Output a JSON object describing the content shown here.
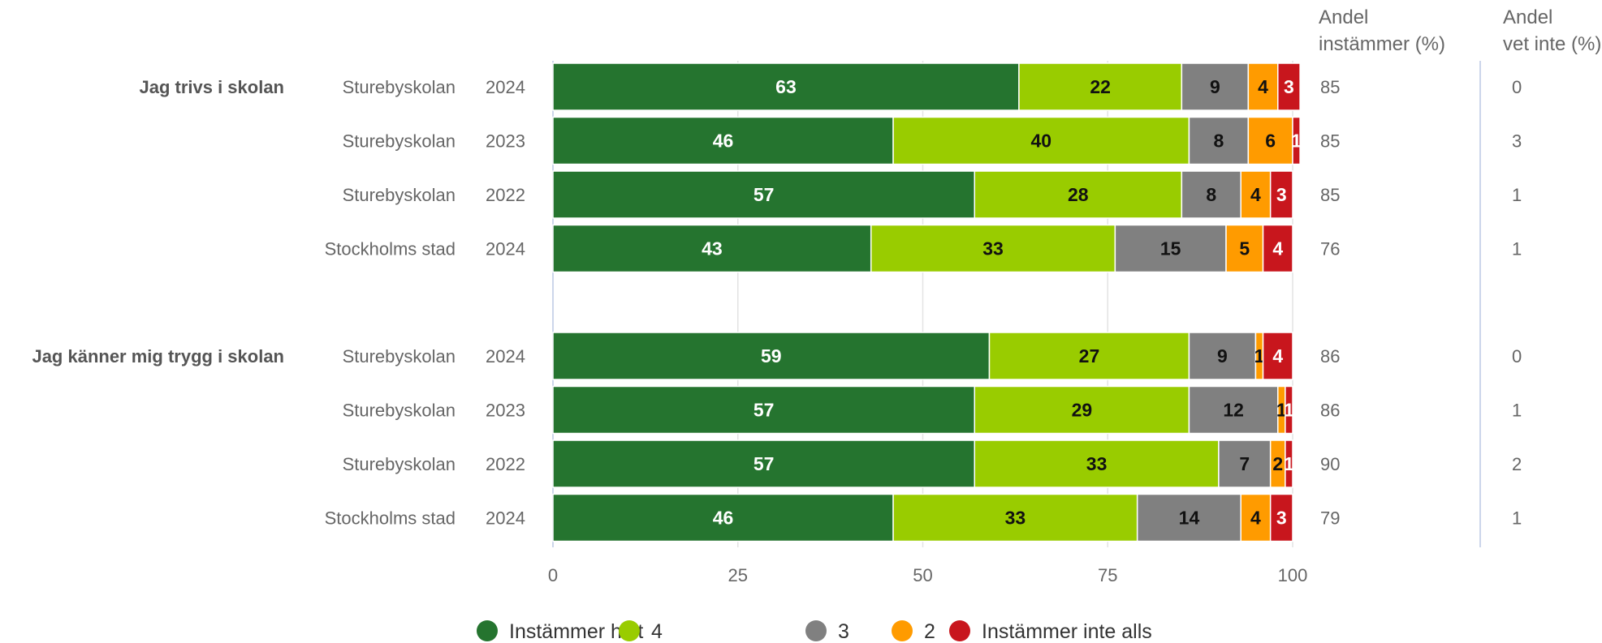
{
  "chart_data": {
    "type": "bar",
    "orientation": "horizontal",
    "stacked": true,
    "xlim": [
      0,
      100
    ],
    "x_ticks": [
      "0",
      "25",
      "50",
      "75",
      "100"
    ],
    "grid": true,
    "legend_placement": "bottom",
    "columns": [
      {
        "key": "agree",
        "header": [
          "Andel",
          "instämmer (%)"
        ]
      },
      {
        "key": "dontknow",
        "header": [
          "Andel",
          "vet inte (%)"
        ]
      }
    ],
    "series": [
      {
        "name": "Instämmer helt",
        "color": "#25742f",
        "label_color": "#ffffff"
      },
      {
        "name": "4",
        "color": "#99cc00",
        "label_color": "#111111"
      },
      {
        "name": "3",
        "color": "#808080",
        "label_color": "#111111"
      },
      {
        "name": "2",
        "color": "#ff9b00",
        "label_color": "#111111"
      },
      {
        "name": "Instämmer inte alls",
        "color": "#c8161d",
        "label_color": "#ffffff"
      }
    ],
    "groups": [
      {
        "question": "Jag trivs i skolan",
        "rows": [
          {
            "unit": "Sturebyskolan",
            "year": "2024",
            "values": [
              63,
              22,
              9,
              4,
              3
            ],
            "agree": "85",
            "dontknow": "0"
          },
          {
            "unit": "Sturebyskolan",
            "year": "2023",
            "values": [
              46,
              40,
              8,
              6,
              1
            ],
            "agree": "85",
            "dontknow": "3"
          },
          {
            "unit": "Sturebyskolan",
            "year": "2022",
            "values": [
              57,
              28,
              8,
              4,
              3
            ],
            "agree": "85",
            "dontknow": "1"
          },
          {
            "unit": "Stockholms stad",
            "year": "2024",
            "values": [
              43,
              33,
              15,
              5,
              4
            ],
            "agree": "76",
            "dontknow": "1"
          }
        ]
      },
      {
        "question": "Jag känner mig trygg i skolan",
        "rows": [
          {
            "unit": "Sturebyskolan",
            "year": "2024",
            "values": [
              59,
              27,
              9,
              1,
              4
            ],
            "agree": "86",
            "dontknow": "0"
          },
          {
            "unit": "Sturebyskolan",
            "year": "2023",
            "values": [
              57,
              29,
              12,
              1,
              1
            ],
            "agree": "86",
            "dontknow": "1"
          },
          {
            "unit": "Sturebyskolan",
            "year": "2022",
            "values": [
              57,
              33,
              7,
              2,
              1
            ],
            "agree": "90",
            "dontknow": "2"
          },
          {
            "unit": "Stockholms stad",
            "year": "2024",
            "values": [
              46,
              33,
              14,
              4,
              3
            ],
            "agree": "79",
            "dontknow": "1"
          }
        ]
      }
    ]
  }
}
